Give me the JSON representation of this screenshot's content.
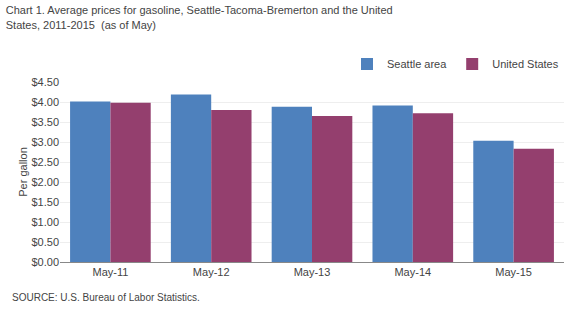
{
  "chart_data": {
    "type": "bar",
    "title": "Chart 1. Average prices for gasoline, Seattle-Tacoma-Bremerton and the United\nStates, 2011-2015  (as of May)",
    "ylabel": "Per gallon",
    "annotations": [
      "SOURCE: U.S. Bureau of Labor Statistics."
    ],
    "categories": [
      "May-11",
      "May-12",
      "May-13",
      "May-14",
      "May-15"
    ],
    "series": [
      {
        "name": "Seattle area",
        "color": "#4E81BD",
        "values": [
          4.01,
          4.19,
          3.88,
          3.91,
          3.03
        ]
      },
      {
        "name": "United States",
        "color": "#943F6E",
        "values": [
          3.98,
          3.8,
          3.65,
          3.72,
          2.83
        ]
      }
    ],
    "ylim": [
      0,
      4.5
    ],
    "yticks": [
      {
        "value": 0.0,
        "label": "$0.00"
      },
      {
        "value": 0.5,
        "label": "$0.50"
      },
      {
        "value": 1.0,
        "label": "$1.00"
      },
      {
        "value": 1.5,
        "label": "$1.50"
      },
      {
        "value": 2.0,
        "label": "$2.00"
      },
      {
        "value": 2.5,
        "label": "$2.50"
      },
      {
        "value": 3.0,
        "label": "$3.00"
      },
      {
        "value": 3.5,
        "label": "$3.50"
      },
      {
        "value": 4.0,
        "label": "$4.00"
      },
      {
        "value": 4.5,
        "label": "$4.50"
      }
    ],
    "grid": true,
    "legend": "upper right"
  }
}
